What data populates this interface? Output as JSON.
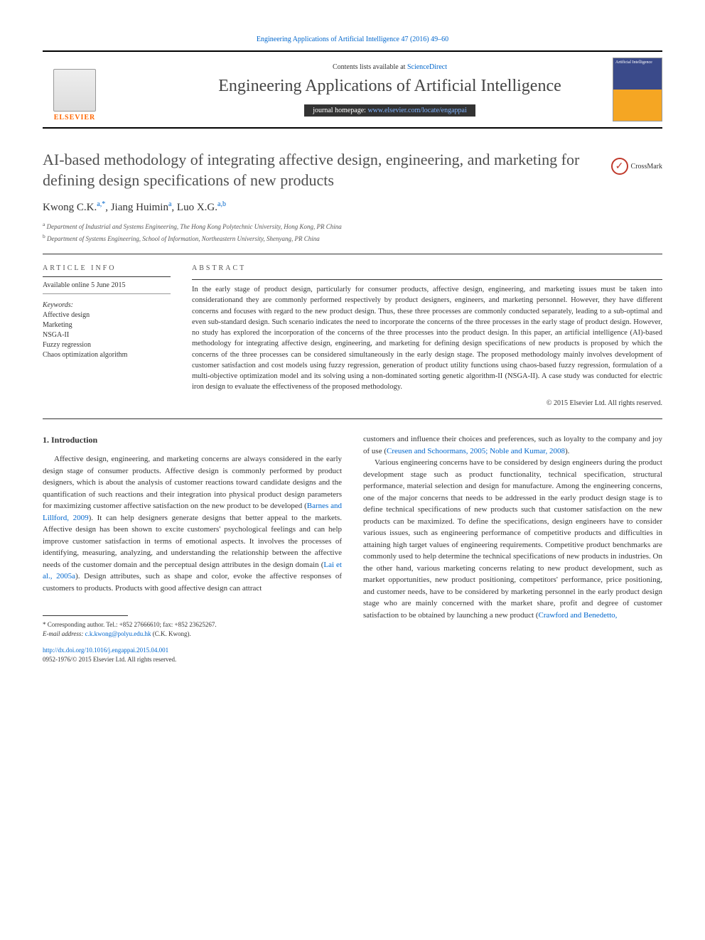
{
  "header": {
    "citation_link": "Engineering Applications of Artificial Intelligence 47 (2016) 49–60",
    "contents_prefix": "Contents lists available at ",
    "contents_link": "ScienceDirect",
    "journal_title": "Engineering Applications of Artificial Intelligence",
    "homepage_prefix": "journal homepage: ",
    "homepage_url": "www.elsevier.com/locate/engappai",
    "elsevier_label": "ELSEVIER",
    "cover_text": "Artificial Intelligence"
  },
  "crossmark": {
    "label": "CrossMark"
  },
  "article": {
    "title": "AI-based methodology of integrating affective design, engineering, and marketing for defining design specifications of new products",
    "authors_html": "Kwong C.K.<sup>a,*</sup>, Jiang Huimin<sup>a</sup>, Luo X.G.<sup>a,b</sup>",
    "affiliations": [
      {
        "sup": "a",
        "text": "Department of Industrial and Systems Engineering, The Hong Kong Polytechnic University, Hong Kong, PR China"
      },
      {
        "sup": "b",
        "text": "Department of Systems Engineering, School of Information, Northeastern University, Shenyang, PR China"
      }
    ]
  },
  "info": {
    "heading": "article info",
    "available": "Available online 5 June 2015",
    "keywords_label": "Keywords:",
    "keywords": [
      "Affective design",
      "Marketing",
      "NSGA-II",
      "Fuzzy regression",
      "Chaos optimization algorithm"
    ]
  },
  "abstract": {
    "heading": "abstract",
    "text": "In the early stage of product design, particularly for consumer products, affective design, engineering, and marketing issues must be taken into considerationand they are commonly performed respectively by product designers, engineers, and marketing personnel. However, they have different concerns and focuses with regard to the new product design. Thus, these three processes are commonly conducted separately, leading to a sub-optimal and even sub-standard design. Such scenario indicates the need to incorporate the concerns of the three processes in the early stage of product design. However, no study has explored the incorporation of the concerns of the three processes into the product design. In this paper, an artificial intelligence (AI)-based methodology for integrating affective design, engineering, and marketing for defining design specifications of new products is proposed by which the concerns of the three processes can be considered simultaneously in the early design stage. The proposed methodology mainly involves development of customer satisfaction and cost models using fuzzy regression, generation of product utility functions using chaos-based fuzzy regression, formulation of a multi-objective optimization model and its solving using a non-dominated sorting genetic algorithm-II (NSGA-II). A case study was conducted for electric iron design to evaluate the effectiveness of the proposed methodology.",
    "copyright": "© 2015 Elsevier Ltd. All rights reserved."
  },
  "body": {
    "section1_heading": "1. Introduction",
    "col1_p1": "Affective design, engineering, and marketing concerns are always considered in the early design stage of consumer products. Affective design is commonly performed by product designers, which is about the analysis of customer reactions toward candidate designs and the quantification of such reactions and their integration into physical product design parameters for maximizing customer affective satisfaction on the new product to be developed (",
    "col1_cite1": "Barnes and Lillford, 2009",
    "col1_p1b": "). It can help designers generate designs that better appeal to the markets. Affective design has been shown to excite customers' psychological feelings and can help improve customer satisfaction in terms of emotional aspects. It involves the processes of identifying, measuring, analyzing, and understanding the relationship between the affective needs of the customer domain and the perceptual design attributes in the design domain (",
    "col1_cite2": "Lai et al., 2005a",
    "col1_p1c": "). Design attributes, such as shape and color, evoke the affective responses of customers to products. Products with good affective design can attract",
    "col2_p1": "customers and influence their choices and preferences, such as loyalty to the company and joy of use (",
    "col2_cite1": "Creusen and Schoormans, 2005; Noble and Kumar, 2008",
    "col2_p1b": ").",
    "col2_p2": "Various engineering concerns have to be considered by design engineers during the product development stage such as product functionality, technical specification, structural performance, material selection and design for manufacture. Among the engineering concerns, one of the major concerns that needs to be addressed in the early product design stage is to define technical specifications of new products such that customer satisfaction on the new products can be maximized. To define the specifications, design engineers have to consider various issues, such as engineering performance of competitive products and difficulties in attaining high target values of engineering requirements. Competitive product benchmarks are commonly used to help determine the technical specifications of new products in industries. On the other hand, various marketing concerns relating to new product development, such as market opportunities, new product positioning, competitors' performance, price positioning, and customer needs, have to be considered by marketing personnel in the early product design stage who are mainly concerned with the market share, profit and degree of customer satisfaction to be obtained by launching a new product (",
    "col2_cite2": "Crawford and Benedetto,"
  },
  "footnote": {
    "corr": "* Corresponding author. Tel.: +852 27666610; fax: +852 23625267.",
    "email_label": "E-mail address: ",
    "email": "c.k.kwong@polyu.edu.hk",
    "email_suffix": " (C.K. Kwong).",
    "doi": "http://dx.doi.org/10.1016/j.engappai.2015.04.001",
    "issn": "0952-1976/© 2015 Elsevier Ltd. All rights reserved."
  },
  "colors": {
    "link": "#0066cc",
    "text": "#333333",
    "elsevier_orange": "#ff6600",
    "crossmark_red": "#c0392b"
  }
}
